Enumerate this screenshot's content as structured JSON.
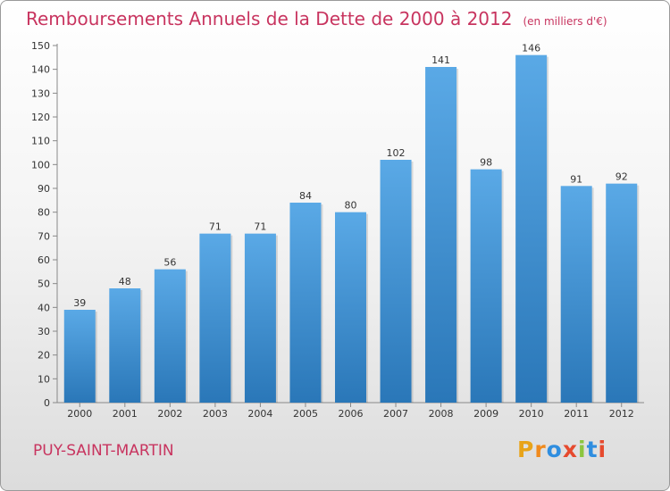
{
  "page": {
    "title": "Remboursements Annuels de la Dette de 2000 à 2012",
    "unit": "(en milliers d'€)",
    "commune": "PUY-SAINT-MARTIN",
    "logo": [
      "P",
      "r",
      "o",
      "x",
      "i",
      "t",
      "i"
    ],
    "logo_colors": [
      "#e8a318",
      "#f08a1c",
      "#2f8ee0",
      "#e64a2e",
      "#8cc63f",
      "#2f8ee0",
      "#e64a2e"
    ]
  },
  "chart_data": {
    "type": "bar",
    "title": "Remboursements Annuels de la Dette de 2000 à 2012",
    "ylabel": "(en milliers d'€)",
    "xlabel": "",
    "categories": [
      "2000",
      "2001",
      "2002",
      "2003",
      "2004",
      "2005",
      "2006",
      "2007",
      "2008",
      "2009",
      "2010",
      "2011",
      "2012"
    ],
    "values": [
      39,
      48,
      56,
      71,
      71,
      84,
      80,
      102,
      141,
      98,
      146,
      91,
      92
    ],
    "ylim": [
      0,
      150
    ],
    "yticks": [
      0,
      10,
      20,
      30,
      40,
      50,
      60,
      70,
      80,
      90,
      100,
      110,
      120,
      130,
      140,
      150
    ],
    "grid": false,
    "bar_color_top": "#5aa9e6",
    "bar_color_bottom": "#2a77b8"
  }
}
